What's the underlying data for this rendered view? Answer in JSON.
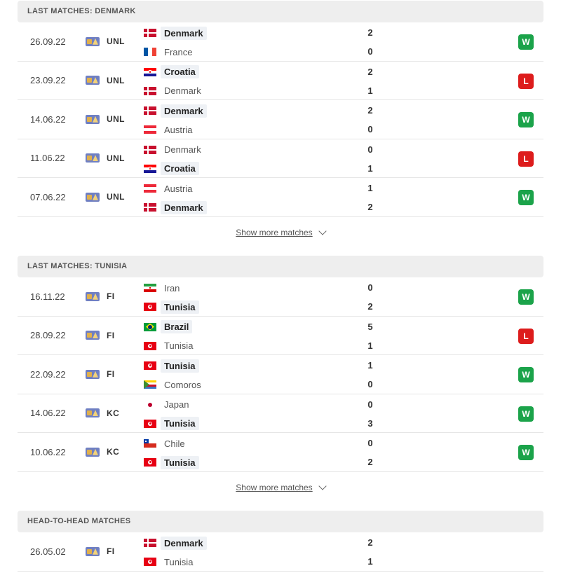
{
  "sections": [
    {
      "title": "LAST MATCHES: DENMARK",
      "show_more": "Show more matches",
      "matches": [
        {
          "date": "26.09.22",
          "competition": "UNL",
          "home": {
            "name": "Denmark",
            "flag": "DEN"
          },
          "away": {
            "name": "France",
            "flag": "FRA"
          },
          "home_score": "2",
          "away_score": "0",
          "winner": "home",
          "result": "W"
        },
        {
          "date": "23.09.22",
          "competition": "UNL",
          "home": {
            "name": "Croatia",
            "flag": "CRO"
          },
          "away": {
            "name": "Denmark",
            "flag": "DEN"
          },
          "home_score": "2",
          "away_score": "1",
          "winner": "home",
          "result": "L"
        },
        {
          "date": "14.06.22",
          "competition": "UNL",
          "home": {
            "name": "Denmark",
            "flag": "DEN"
          },
          "away": {
            "name": "Austria",
            "flag": "AUT"
          },
          "home_score": "2",
          "away_score": "0",
          "winner": "home",
          "result": "W"
        },
        {
          "date": "11.06.22",
          "competition": "UNL",
          "home": {
            "name": "Denmark",
            "flag": "DEN"
          },
          "away": {
            "name": "Croatia",
            "flag": "CRO"
          },
          "home_score": "0",
          "away_score": "1",
          "winner": "away",
          "result": "L"
        },
        {
          "date": "07.06.22",
          "competition": "UNL",
          "home": {
            "name": "Austria",
            "flag": "AUT"
          },
          "away": {
            "name": "Denmark",
            "flag": "DEN"
          },
          "home_score": "1",
          "away_score": "2",
          "winner": "away",
          "result": "W"
        }
      ]
    },
    {
      "title": "LAST MATCHES: TUNISIA",
      "show_more": "Show more matches",
      "matches": [
        {
          "date": "16.11.22",
          "competition": "FI",
          "home": {
            "name": "Iran",
            "flag": "IRN"
          },
          "away": {
            "name": "Tunisia",
            "flag": "TUN"
          },
          "home_score": "0",
          "away_score": "2",
          "winner": "away",
          "result": "W"
        },
        {
          "date": "28.09.22",
          "competition": "FI",
          "home": {
            "name": "Brazil",
            "flag": "BRA"
          },
          "away": {
            "name": "Tunisia",
            "flag": "TUN"
          },
          "home_score": "5",
          "away_score": "1",
          "winner": "home",
          "result": "L"
        },
        {
          "date": "22.09.22",
          "competition": "FI",
          "home": {
            "name": "Tunisia",
            "flag": "TUN"
          },
          "away": {
            "name": "Comoros",
            "flag": "COM"
          },
          "home_score": "1",
          "away_score": "0",
          "winner": "home",
          "result": "W"
        },
        {
          "date": "14.06.22",
          "competition": "KC",
          "home": {
            "name": "Japan",
            "flag": "JPN"
          },
          "away": {
            "name": "Tunisia",
            "flag": "TUN"
          },
          "home_score": "0",
          "away_score": "3",
          "winner": "away",
          "result": "W"
        },
        {
          "date": "10.06.22",
          "competition": "KC",
          "home": {
            "name": "Chile",
            "flag": "CHI"
          },
          "away": {
            "name": "Tunisia",
            "flag": "TUN"
          },
          "home_score": "0",
          "away_score": "2",
          "winner": "away",
          "result": "W"
        }
      ]
    },
    {
      "title": "HEAD-TO-HEAD MATCHES",
      "show_more": "",
      "matches": [
        {
          "date": "26.05.02",
          "competition": "FI",
          "home": {
            "name": "Denmark",
            "flag": "DEN"
          },
          "away": {
            "name": "Tunisia",
            "flag": "TUN"
          },
          "home_score": "2",
          "away_score": "1",
          "winner": "home",
          "result": ""
        }
      ]
    }
  ],
  "colors": {
    "win_badge": "#1ba34a",
    "loss_badge": "#dd1c1c",
    "header_bg": "#eeeeee"
  }
}
